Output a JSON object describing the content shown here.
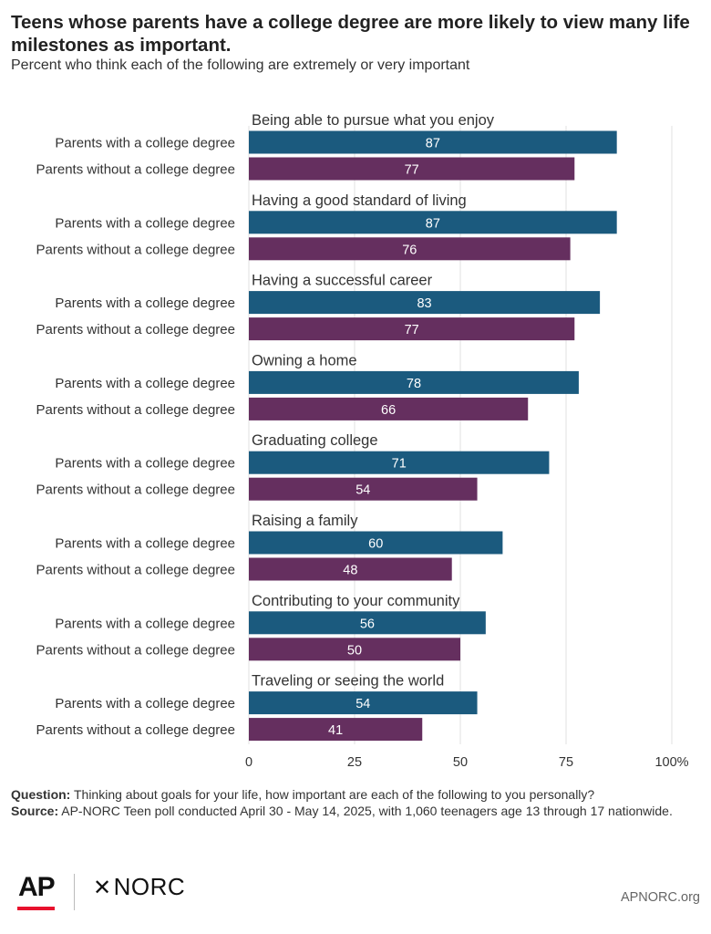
{
  "title": "Teens whose parents have a college degree are more likely to view many life milestones as important.",
  "subtitle": "Percent who think each of the following are extremely or very important",
  "chart_data": {
    "type": "bar",
    "orientation": "horizontal",
    "xlim": [
      0,
      100
    ],
    "xticks": [
      "0",
      "25",
      "50",
      "75",
      "100%"
    ],
    "xtick_values": [
      0,
      25,
      50,
      75,
      100
    ],
    "grid": true,
    "colors": {
      "with_degree": "#1b5a7e",
      "without_degree": "#652f5f"
    },
    "groups": [
      {
        "label": "Being able to pursue what you enjoy",
        "bars": [
          {
            "label": "Parents with a college degree",
            "value": 87
          },
          {
            "label": "Parents without a college degree",
            "value": 77
          }
        ]
      },
      {
        "label": "Having a good standard of living",
        "bars": [
          {
            "label": "Parents with a college degree",
            "value": 87
          },
          {
            "label": "Parents without a college degree",
            "value": 76
          }
        ]
      },
      {
        "label": "Having a successful career",
        "bars": [
          {
            "label": "Parents with a college degree",
            "value": 83
          },
          {
            "label": "Parents without a college degree",
            "value": 77
          }
        ]
      },
      {
        "label": "Owning a home",
        "bars": [
          {
            "label": "Parents with a college degree",
            "value": 78
          },
          {
            "label": "Parents without a college degree",
            "value": 66
          }
        ]
      },
      {
        "label": "Graduating college",
        "bars": [
          {
            "label": "Parents with a college degree",
            "value": 71
          },
          {
            "label": "Parents without a college degree",
            "value": 54
          }
        ]
      },
      {
        "label": "Raising a family",
        "bars": [
          {
            "label": "Parents with a college degree",
            "value": 60
          },
          {
            "label": "Parents without a college degree",
            "value": 48
          }
        ]
      },
      {
        "label": "Contributing to your community",
        "bars": [
          {
            "label": "Parents with a college degree",
            "value": 56
          },
          {
            "label": "Parents without a college degree",
            "value": 50
          }
        ]
      },
      {
        "label": "Traveling or seeing the world",
        "bars": [
          {
            "label": "Parents with a college degree",
            "value": 54
          },
          {
            "label": "Parents without a college degree",
            "value": 41
          }
        ]
      }
    ]
  },
  "notes": {
    "question_label": "Question:",
    "question_text": " Thinking about goals for your life, how important are each of the following to you personally?",
    "source_label": "Source:",
    "source_text": " AP-NORC Teen poll conducted April 30 - May 14, 2025, with 1,060 teenagers age 13 through 17 nationwide."
  },
  "footer": {
    "ap_logo": "AP",
    "norc_mark": "✕",
    "norc_logo": "NORC",
    "site": "APNORC.org"
  }
}
